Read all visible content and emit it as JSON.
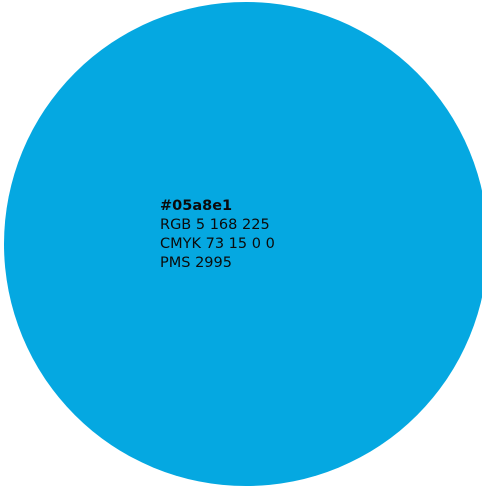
{
  "swatch": {
    "color": "#05a8e1",
    "hex_label": "#05a8e1",
    "rgb_label": "RGB 5 168 225",
    "cmyk_label": "CMYK 73 15 0 0",
    "pms_label": "PMS 2995"
  }
}
